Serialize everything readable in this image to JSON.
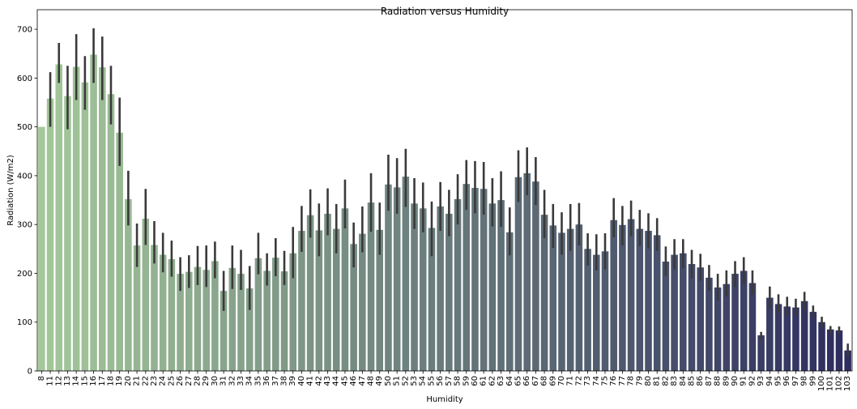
{
  "chart_data": {
    "type": "bar",
    "title": "Radiation versus Humidity",
    "xlabel": "Humidity",
    "ylabel": "Radiation (W/m2)",
    "ylim": [
      0,
      740
    ],
    "yticks": [
      0,
      100,
      200,
      300,
      400,
      500,
      600,
      700
    ],
    "grid": false,
    "legend": "none",
    "palette": {
      "start": "#a4c89a",
      "end": "#2d2d5e",
      "errorbar": "#3a3a3a"
    },
    "categories": [
      "8",
      "11",
      "12",
      "13",
      "14",
      "15",
      "16",
      "17",
      "18",
      "19",
      "20",
      "21",
      "22",
      "23",
      "24",
      "25",
      "26",
      "27",
      "28",
      "29",
      "30",
      "31",
      "32",
      "33",
      "34",
      "35",
      "36",
      "37",
      "38",
      "39",
      "40",
      "41",
      "42",
      "43",
      "44",
      "45",
      "46",
      "47",
      "48",
      "49",
      "50",
      "51",
      "52",
      "53",
      "54",
      "55",
      "56",
      "57",
      "58",
      "59",
      "60",
      "61",
      "62",
      "63",
      "64",
      "65",
      "66",
      "67",
      "68",
      "69",
      "70",
      "71",
      "72",
      "73",
      "74",
      "75",
      "76",
      "77",
      "78",
      "79",
      "80",
      "81",
      "82",
      "83",
      "84",
      "85",
      "86",
      "87",
      "88",
      "89",
      "90",
      "91",
      "92",
      "93",
      "94",
      "95",
      "96",
      "97",
      "98",
      "99",
      "100",
      "101",
      "102",
      "103"
    ],
    "values": [
      500,
      558,
      628,
      563,
      623,
      591,
      648,
      622,
      567,
      488,
      352,
      257,
      312,
      258,
      238,
      229,
      199,
      203,
      213,
      207,
      225,
      164,
      211,
      199,
      169,
      231,
      205,
      232,
      204,
      241,
      287,
      319,
      288,
      322,
      291,
      333,
      260,
      281,
      345,
      289,
      382,
      376,
      398,
      343,
      333,
      293,
      337,
      322,
      352,
      383,
      375,
      373,
      343,
      350,
      284,
      397,
      405,
      388,
      320,
      298,
      283,
      291,
      300,
      250,
      238,
      245,
      309,
      299,
      311,
      291,
      287,
      278,
      224,
      238,
      241,
      219,
      212,
      191,
      171,
      178,
      199,
      205,
      180,
      73,
      150,
      137,
      132,
      130,
      143,
      121,
      100,
      85,
      83,
      42
    ],
    "err_low": [
      500,
      500,
      590,
      495,
      555,
      535,
      590,
      555,
      505,
      420,
      298,
      213,
      258,
      220,
      202,
      193,
      164,
      170,
      176,
      172,
      190,
      123,
      168,
      166,
      125,
      198,
      175,
      194,
      176,
      190,
      244,
      273,
      235,
      278,
      241,
      292,
      212,
      243,
      285,
      238,
      328,
      322,
      336,
      291,
      284,
      235,
      287,
      276,
      300,
      330,
      323,
      320,
      296,
      295,
      237,
      346,
      360,
      340,
      272,
      252,
      238,
      246,
      257,
      216,
      206,
      208,
      274,
      257,
      276,
      256,
      251,
      246,
      195,
      208,
      210,
      190,
      185,
      164,
      144,
      152,
      172,
      178,
      156,
      64,
      127,
      118,
      113,
      113,
      125,
      108,
      89,
      78,
      76,
      31
    ],
    "err_high": [
      500,
      612,
      672,
      625,
      690,
      645,
      702,
      685,
      625,
      560,
      410,
      302,
      373,
      307,
      283,
      267,
      233,
      237,
      256,
      257,
      265,
      205,
      257,
      248,
      215,
      283,
      241,
      272,
      246,
      295,
      338,
      372,
      343,
      374,
      342,
      392,
      304,
      337,
      405,
      345,
      443,
      436,
      455,
      395,
      386,
      347,
      387,
      371,
      403,
      432,
      430,
      428,
      395,
      409,
      335,
      452,
      458,
      438,
      371,
      342,
      325,
      342,
      344,
      282,
      280,
      282,
      354,
      338,
      349,
      330,
      323,
      313,
      255,
      270,
      270,
      248,
      240,
      217,
      199,
      206,
      225,
      233,
      206,
      80,
      173,
      157,
      152,
      148,
      162,
      134,
      111,
      92,
      91,
      56
    ]
  }
}
